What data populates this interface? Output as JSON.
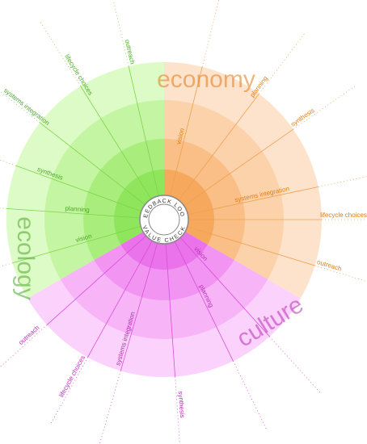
{
  "center": {
    "top": "FEEDBACK LOOP",
    "bottom": "VALUE CHECK"
  },
  "sectors": [
    {
      "name": "economy",
      "labels": [
        "vision",
        "planning",
        "synthesis",
        "systems integration",
        "lifecycle choices",
        "outreach"
      ]
    },
    {
      "name": "culture",
      "labels": [
        "vision",
        "planning",
        "synthesis",
        "systems integration",
        "lifecycle choices",
        "outreach"
      ]
    },
    {
      "name": "ecology",
      "labels": [
        "vision",
        "planning",
        "synthesis",
        "systems integration",
        "lifecycle choices",
        "outreach"
      ]
    }
  ]
}
